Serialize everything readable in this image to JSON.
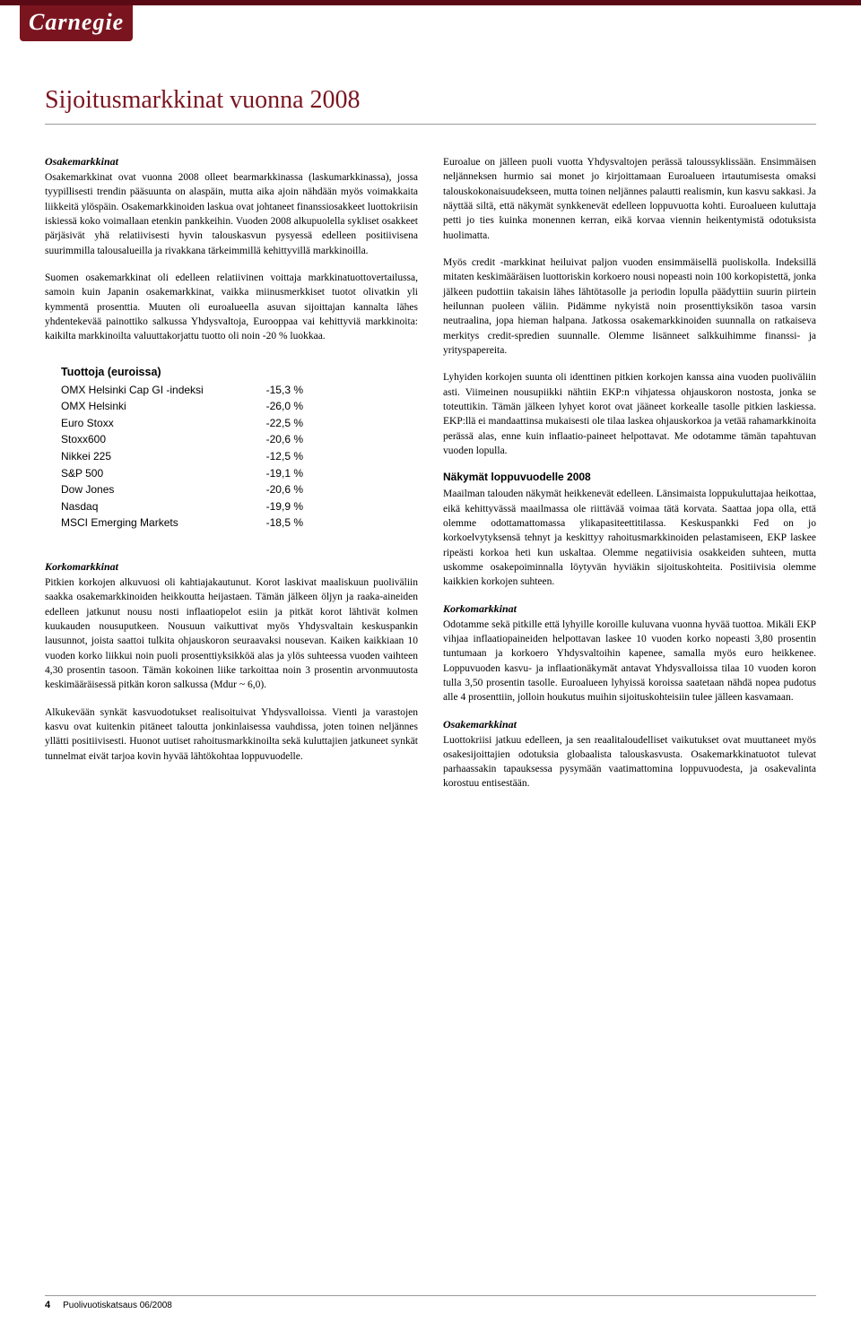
{
  "colors": {
    "brand": "#7a1520",
    "topbar": "#5a0a14",
    "rule": "#999999",
    "text": "#000000",
    "bg": "#ffffff"
  },
  "logo": {
    "text": "Carnegie"
  },
  "title": "Sijoitusmarkkinat vuonna 2008",
  "left": {
    "h_osake": "Osakemarkkinat",
    "p1": "Osakemarkkinat ovat vuonna 2008 olleet bearmarkkinassa (laskumarkkinassa), jossa tyypillisesti trendin pääsuunta on alaspäin, mutta aika ajoin nähdään myös voimakkaita liikkeitä ylöspäin. Osakemarkkinoiden laskua ovat johtaneet finanssiosakkeet luottokriisin iskiessä koko voimallaan etenkin pankkeihin. Vuoden 2008 alkupuolella sykliset osakkeet pärjäsivät yhä relatiivisesti hyvin talouskasvun pysyessä edelleen positiivisena suurimmilla talousalueilla ja rivakkana tärkeimmillä kehittyvillä markkinoilla.",
    "p2": "Suomen osakemarkkinat oli edelleen relatiivinen voittaja markkinatuottovertailussa, samoin kuin Japanin osakemarkkinat, vaikka miinusmerkkiset tuotot olivatkin yli kymmentä prosenttia. Muuten oli euroalueella asuvan sijoittajan kannalta lähes yhdentekevää painottiko salkussa Yhdysvaltoja, Eurooppaa vai kehittyviä markkinoita: kaikilta markkinoilta valuuttakorjattu tuotto oli noin -20 % luokkaa.",
    "table": {
      "title": "Tuottoja (euroissa)",
      "rows": [
        {
          "label": "OMX Helsinki Cap GI -indeksi",
          "value": "-15,3 %"
        },
        {
          "label": "OMX Helsinki",
          "value": "-26,0 %"
        },
        {
          "label": "Euro Stoxx",
          "value": "-22,5 %"
        },
        {
          "label": "Stoxx600",
          "value": "-20,6 %"
        },
        {
          "label": "Nikkei 225",
          "value": "-12,5 %"
        },
        {
          "label": "S&P 500",
          "value": "-19,1 %"
        },
        {
          "label": "Dow Jones",
          "value": "-20,6 %"
        },
        {
          "label": "Nasdaq",
          "value": "-19,9 %"
        },
        {
          "label": "MSCI Emerging Markets",
          "value": "-18,5 %"
        }
      ]
    },
    "h_korko": "Korkomarkkinat",
    "p3": "Pitkien korkojen alkuvuosi oli kahtiajakautunut. Korot laskivat maaliskuun puoliväliin saakka osakemarkkinoiden heikkoutta heijastaen. Tämän jälkeen öljyn ja raaka-aineiden edelleen jatkunut nousu nosti inflaatiopelot esiin ja pitkät korot lähtivät kolmen kuukauden nousuputkeen. Nousuun vaikuttivat myös Yhdysvaltain keskuspankin lausunnot, joista saattoi tulkita ohjauskoron seuraavaksi nousevan. Kaiken kaikkiaan 10 vuoden korko liikkui noin puoli prosenttiyksikköä alas ja ylös suhteessa vuoden vaihteen 4,30 prosentin tasoon. Tämän kokoinen liike tarkoittaa noin 3 prosentin arvonmuutosta keskimääräisessä pitkän koron salkussa (Mdur ~ 6,0).",
    "p4": "Alkukevään synkät kasvuodotukset realisoituivat Yhdysvalloissa. Vienti ja varastojen kasvu ovat kuitenkin pitäneet taloutta jonkinlaisessa vauhdissa, joten toinen neljännes yllätti positiivisesti. Huonot uutiset rahoitusmarkkinoilta sekä kuluttajien jatkuneet synkät tunnelmat eivät tarjoa kovin hyvää lähtökohtaa loppuvuodelle."
  },
  "right": {
    "p1": "Euroalue on jälleen puoli vuotta Yhdysvaltojen perässä taloussyklissään. Ensimmäisen neljänneksen hurmio sai monet jo kirjoittamaan Euroalueen irtautumisesta omaksi talouskokonaisuudekseen, mutta toinen neljännes palautti realismin, kun kasvu sakkasi. Ja näyttää siltä, että näkymät synkkenevät edelleen loppuvuotta kohti. Euroalueen kuluttaja petti jo ties kuinka monennen kerran, eikä korvaa viennin heikentymistä odotuksista huolimatta.",
    "p2": "Myös credit -markkinat heiluivat paljon vuoden ensimmäisellä puoliskolla. Indeksillä mitaten keskimääräisen luottoriskin korkoero nousi nopeasti noin 100 korkopistettä, jonka jälkeen pudottiin takaisin lähes lähtötasolle ja periodin lopulla päädyttiin suurin piirtein heilunnan puoleen väliin. Pidämme nykyistä noin prosenttiyksikön tasoa varsin neutraalina, jopa hieman halpana. Jatkossa osakemarkkinoiden suunnalla on ratkaiseva merkitys credit-spredien suunnalle. Olemme lisänneet salkkuihimme finanssi- ja yrityspapereita.",
    "p3": "Lyhyiden korkojen suunta oli identtinen pitkien korkojen kanssa aina vuoden puoliväliin asti. Viimeinen nousupiikki nähtiin EKP:n vihjatessa ohjauskoron nostosta, jonka se toteuttikin. Tämän jälkeen lyhyet korot ovat jääneet korkealle tasolle pitkien laskiessa. EKP:llä ei mandaattinsa mukaisesti ole tilaa laskea ohjauskorkoa ja vetää rahamarkkinoita perässä alas, enne kuin inflaatio-paineet helpottavat. Me odotamme tämän tapahtuvan vuoden lopulla.",
    "h_nak": "Näkymät loppuvuodelle 2008",
    "p4": "Maailman talouden näkymät heikkenevät edelleen. Länsimaista loppukuluttajaa heikottaa, eikä kehittyvässä maailmassa ole riittävää voimaa tätä korvata. Saattaa jopa olla, että olemme odottamattomassa ylikapasiteettitilassa. Keskuspankki Fed on jo korkoelvytyksensä tehnyt ja keskittyy rahoitusmarkkinoiden pelastamiseen, EKP laskee ripeästi korkoa heti kun uskaltaa. Olemme negatiivisia osakkeiden suhteen, mutta uskomme osakepoiminnalla löytyvän hyviäkin sijoituskohteita. Positiivisia olemme kaikkien korkojen suhteen.",
    "h_korko": "Korkomarkkinat",
    "p5": "Odotamme sekä pitkille että lyhyille koroille kuluvana vuonna hyvää tuottoa. Mikäli EKP vihjaa inflaatiopaineiden helpottavan laskee 10 vuoden korko nopeasti 3,80 prosentin tuntumaan ja korkoero Yhdysvaltoihin kapenee, samalla myös euro heikkenee. Loppuvuoden kasvu- ja inflaationäkymät antavat Yhdysvalloissa tilaa 10 vuoden koron tulla 3,50 prosentin tasolle. Euroalueen lyhyissä koroissa saatetaan nähdä nopea pudotus alle 4 prosenttiin, jolloin houkutus muihin sijoituskohteisiin tulee jälleen kasvamaan.",
    "h_osake": "Osakemarkkinat",
    "p6": "Luottokriisi jatkuu edelleen, ja sen reaalitaloudelliset vaikutukset ovat muuttaneet myös osakesijoittajien odotuksia globaalista talouskasvusta. Osakemarkkinatuotot tulevat parhaassakin tapauksessa pysymään vaatimattomina loppuvuodesta, ja osakevalinta korostuu entisestään."
  },
  "footer": {
    "page": "4",
    "text": "Puolivuotiskatsaus 06/2008"
  }
}
